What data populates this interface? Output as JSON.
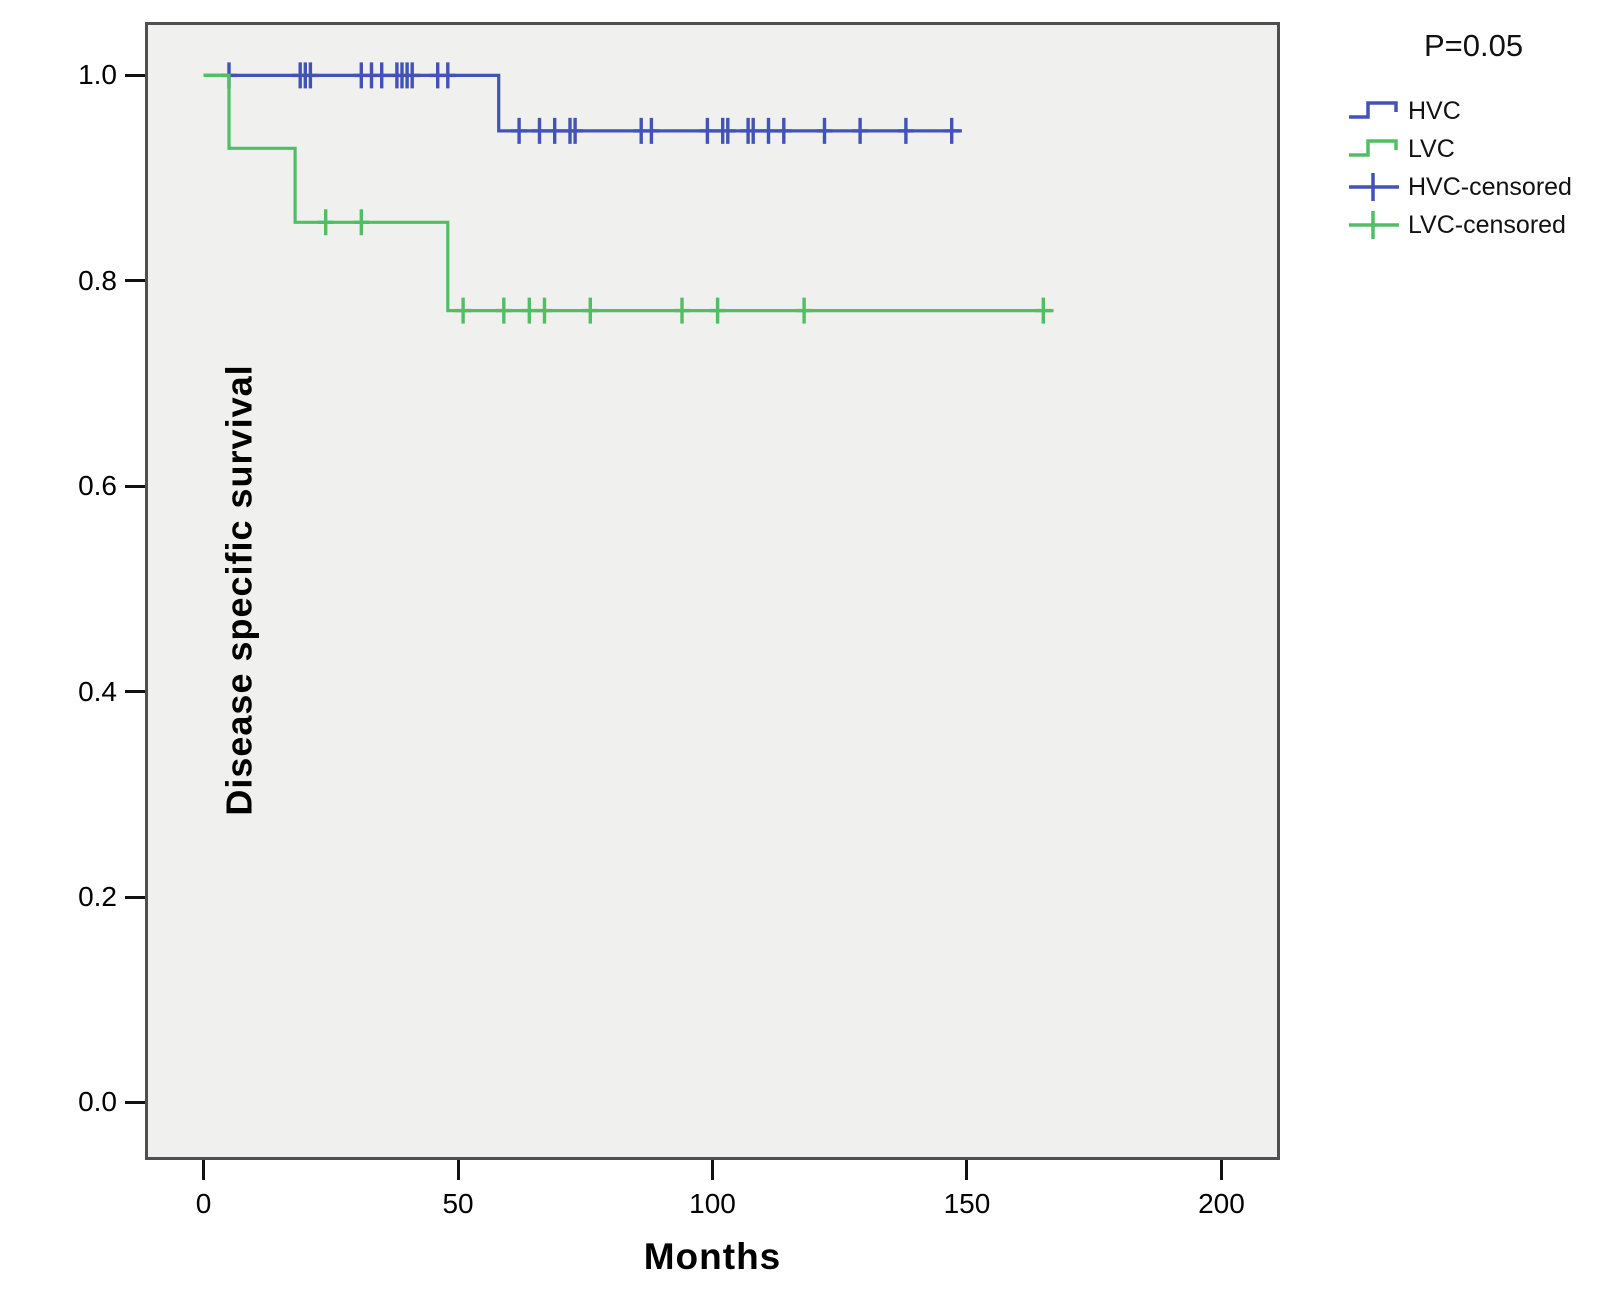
{
  "legend": {
    "p_value": "P=0.05",
    "items": [
      {
        "label": "HVC",
        "color": "#4353b5",
        "type": "line"
      },
      {
        "label": "LVC",
        "color": "#53bd66",
        "type": "line"
      },
      {
        "label": "HVC-censored",
        "color": "#4353b5",
        "type": "censor"
      },
      {
        "label": "LVC-censored",
        "color": "#53bd66",
        "type": "censor"
      }
    ]
  },
  "chart_data": {
    "type": "line",
    "subtype": "kaplan-meier-step",
    "title": "P=0.05",
    "xlabel": "Months",
    "ylabel": "Disease specific survival",
    "xlim": [
      -11.5,
      211.5
    ],
    "ylim": [
      -0.056,
      1.052
    ],
    "xticks": [
      0,
      50,
      100,
      150,
      200
    ],
    "yticks": [
      "0.0",
      "0.2",
      "0.4",
      "0.6",
      "0.8",
      "1.0"
    ],
    "grid": false,
    "legend_position": "top-right-outside",
    "plot_background": "#f0f0ee",
    "series": [
      {
        "name": "HVC",
        "color": "#4353b5",
        "steps": [
          [
            0,
            1.0
          ],
          [
            58,
            1.0
          ],
          [
            58,
            0.946
          ],
          [
            149,
            0.946
          ]
        ],
        "censored_x": [
          5,
          19,
          20,
          21,
          31,
          33,
          35,
          38,
          39,
          40,
          41,
          46,
          48,
          62,
          66,
          69,
          72,
          73,
          86,
          88,
          99,
          102,
          103,
          107,
          108,
          111,
          114,
          122,
          129,
          138,
          147
        ]
      },
      {
        "name": "LVC",
        "color": "#53bd66",
        "steps": [
          [
            0,
            1.0
          ],
          [
            5,
            1.0
          ],
          [
            5,
            0.929
          ],
          [
            18,
            0.929
          ],
          [
            18,
            0.857
          ],
          [
            48,
            0.857
          ],
          [
            48,
            0.771
          ],
          [
            167,
            0.771
          ]
        ],
        "censored_x": [
          24,
          31,
          51,
          59,
          64,
          67,
          76,
          94,
          101,
          118,
          165
        ]
      }
    ]
  }
}
